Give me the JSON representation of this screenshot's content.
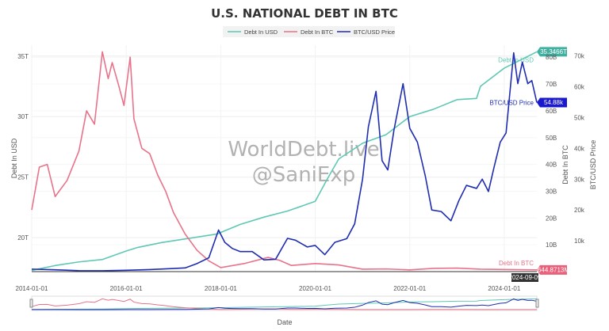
{
  "chart_data": {
    "type": "line",
    "title": "U.S. NATIONAL DEBT IN BTC",
    "watermark": [
      "WorldDebt.live",
      "@SaniExp"
    ],
    "xlabel": "Date",
    "x_ticks": [
      "2014-01-01",
      "2016-01-01",
      "2018-01-01",
      "2020-01-01",
      "2022-01-01",
      "2024-01-01"
    ],
    "x_range": [
      "2014-01-01",
      "2024-09-09"
    ],
    "legend": {
      "placement": "top-center",
      "entries": [
        "Debt In USD",
        "Debt In BTC",
        "BTC/USD Price"
      ]
    },
    "grid": true,
    "range_slider": true,
    "hover_date": "2024-09-09",
    "axes": {
      "y_left": {
        "label": "Debt In USD",
        "ticks": [
          "20T",
          "25T",
          "30T",
          "35T"
        ],
        "tick_values": [
          20,
          25,
          30,
          35
        ],
        "unit": "T",
        "range": [
          17.2,
          35.9
        ]
      },
      "y_right1": {
        "label": "Debt In BTC",
        "ticks": [
          "10B",
          "20B",
          "30B",
          "40B",
          "50B",
          "60B",
          "70B",
          "80B"
        ],
        "tick_values": [
          10,
          20,
          30,
          40,
          50,
          60,
          70,
          80
        ],
        "unit": "B",
        "range": [
          0,
          84.5
        ]
      },
      "y_right2": {
        "label": "BTC/USD Price",
        "ticks": [
          "10k",
          "20k",
          "30k",
          "40k",
          "50k",
          "60k",
          "70k"
        ],
        "tick_values": [
          10,
          20,
          30,
          40,
          50,
          60,
          70
        ],
        "unit": "k",
        "range": [
          0,
          73.5
        ]
      }
    },
    "series": [
      {
        "name": "Debt In USD",
        "axis": "y_left",
        "color": "#5fc8b4",
        "end_label": "35.3466T",
        "x": [
          "2014-01-01",
          "2014-07-01",
          "2015-01-01",
          "2015-07-01",
          "2016-01-01",
          "2016-04-01",
          "2016-10-01",
          "2017-06-01",
          "2017-12-01",
          "2018-06-01",
          "2018-12-01",
          "2019-06-01",
          "2020-01-01",
          "2020-04-01",
          "2020-07-01",
          "2021-01-01",
          "2021-07-01",
          "2022-01-01",
          "2022-07-01",
          "2023-01-01",
          "2023-06-01",
          "2023-07-01",
          "2024-01-01",
          "2024-09-09"
        ],
        "y": [
          17.3,
          17.7,
          18.0,
          18.2,
          18.9,
          19.2,
          19.6,
          20.0,
          20.3,
          21.1,
          21.7,
          22.2,
          23.0,
          24.8,
          26.5,
          27.8,
          28.5,
          30.0,
          30.6,
          31.4,
          31.5,
          32.5,
          34.0,
          35.35
        ]
      },
      {
        "name": "Debt In BTC",
        "axis": "y_right1",
        "color": "#e8738a",
        "end_label": "644.8713M",
        "x": [
          "2014-01-01",
          "2014-03-01",
          "2014-05-01",
          "2014-07-01",
          "2014-10-01",
          "2015-01-01",
          "2015-03-01",
          "2015-05-01",
          "2015-07-01",
          "2015-08-15",
          "2015-09-15",
          "2015-11-01",
          "2015-12-15",
          "2016-02-01",
          "2016-03-01",
          "2016-05-01",
          "2016-07-01",
          "2016-09-01",
          "2016-11-01",
          "2017-01-01",
          "2017-04-01",
          "2017-07-01",
          "2017-10-01",
          "2018-01-01",
          "2018-07-01",
          "2019-01-01",
          "2019-04-01",
          "2019-07-01",
          "2020-01-01",
          "2020-07-01",
          "2021-01-01",
          "2021-07-01",
          "2022-01-01",
          "2022-07-01",
          "2023-01-01",
          "2023-07-01",
          "2024-01-01",
          "2024-09-09"
        ],
        "y": [
          23,
          39,
          40,
          28,
          34,
          45,
          60,
          55,
          82,
          72,
          78,
          70,
          62,
          80,
          57,
          46,
          44,
          36,
          30,
          22,
          14,
          8,
          4,
          1.5,
          3,
          5.3,
          4.2,
          2.3,
          3,
          2.5,
          0.9,
          1.0,
          0.65,
          1.2,
          1.3,
          0.9,
          0.8,
          0.645
        ]
      },
      {
        "name": "BTC/USD Price",
        "axis": "y_right2",
        "color": "#1f2db0",
        "end_label": "54.88k",
        "x": [
          "2014-01-01",
          "2014-07-01",
          "2015-01-01",
          "2015-07-01",
          "2016-01-01",
          "2016-07-01",
          "2017-01-01",
          "2017-04-01",
          "2017-07-01",
          "2017-10-01",
          "2017-12-15",
          "2018-02-01",
          "2018-04-01",
          "2018-06-01",
          "2018-09-01",
          "2018-12-01",
          "2019-03-01",
          "2019-06-01",
          "2019-08-01",
          "2019-11-01",
          "2020-01-01",
          "2020-03-15",
          "2020-06-01",
          "2020-09-01",
          "2020-11-01",
          "2021-01-01",
          "2021-02-15",
          "2021-04-15",
          "2021-06-01",
          "2021-07-15",
          "2021-09-01",
          "2021-11-10",
          "2022-01-01",
          "2022-03-01",
          "2022-05-01",
          "2022-06-20",
          "2022-09-01",
          "2022-11-15",
          "2023-01-15",
          "2023-03-15",
          "2023-06-01",
          "2023-07-15",
          "2023-09-01",
          "2023-10-15",
          "2023-12-01",
          "2024-01-15",
          "2024-03-14",
          "2024-04-15",
          "2024-05-20",
          "2024-07-01",
          "2024-08-01",
          "2024-09-09"
        ],
        "y": [
          0.8,
          0.6,
          0.3,
          0.27,
          0.43,
          0.65,
          1.0,
          1.2,
          2.6,
          4.5,
          13.5,
          9.5,
          7.5,
          6.5,
          6.5,
          3.8,
          4.0,
          10.8,
          10.2,
          8.0,
          8.5,
          5.5,
          9.5,
          10.7,
          15.5,
          30.0,
          47.0,
          58.5,
          36.0,
          33.0,
          46.0,
          61.0,
          46.5,
          42.0,
          31.0,
          20.0,
          19.5,
          16.5,
          23.0,
          28.0,
          27.0,
          30.0,
          26.0,
          34.0,
          42.0,
          45.0,
          71.0,
          61.0,
          68.0,
          61.0,
          62.0,
          54.88
        ]
      }
    ]
  }
}
